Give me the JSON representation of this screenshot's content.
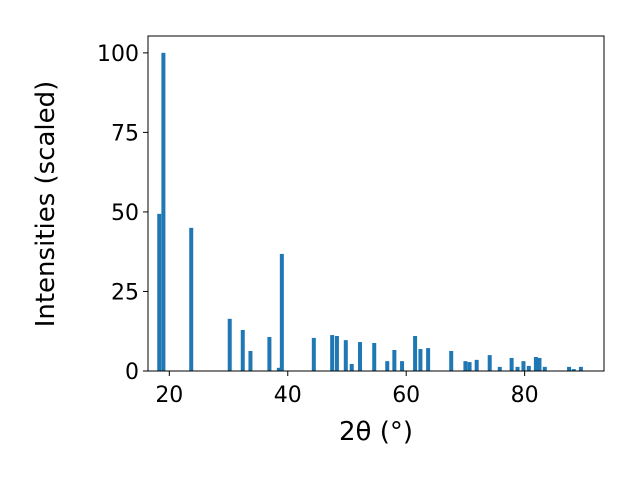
{
  "chart_data": {
    "type": "bar",
    "x_label": "2θ (°)",
    "y_label": "Intensities (scaled)",
    "color": "#1f77b4",
    "x": [
      18.3,
      19.0,
      23.7,
      30.2,
      32.4,
      33.7,
      36.9,
      38.5,
      39.0,
      44.4,
      47.5,
      48.3,
      49.8,
      50.8,
      52.2,
      54.6,
      56.8,
      58.0,
      59.3,
      61.5,
      62.4,
      63.7,
      67.6,
      70.0,
      70.7,
      71.9,
      74.1,
      75.8,
      77.8,
      78.8,
      79.8,
      80.7,
      81.9,
      82.5,
      83.4,
      87.5,
      88.3,
      89.5
    ],
    "values": [
      49.4,
      100,
      45,
      16.4,
      12.9,
      6.3,
      10.7,
      1,
      36.8,
      10.4,
      11.3,
      11,
      9.7,
      2.2,
      9.1,
      8.8,
      3.1,
      6.6,
      3.1,
      11,
      6.9,
      7.2,
      6.3,
      3.1,
      2.8,
      3.5,
      5,
      1.3,
      4.1,
      1.3,
      3.1,
      1.6,
      4.4,
      4.1,
      1.3,
      1.3,
      0.6,
      1.3
    ],
    "xlim": [
      16.4,
      93.4
    ],
    "ylim": [
      0,
      105.3
    ],
    "xticks": [
      20,
      40,
      60,
      80
    ],
    "yticks": [
      0,
      25,
      50,
      75,
      100
    ]
  }
}
